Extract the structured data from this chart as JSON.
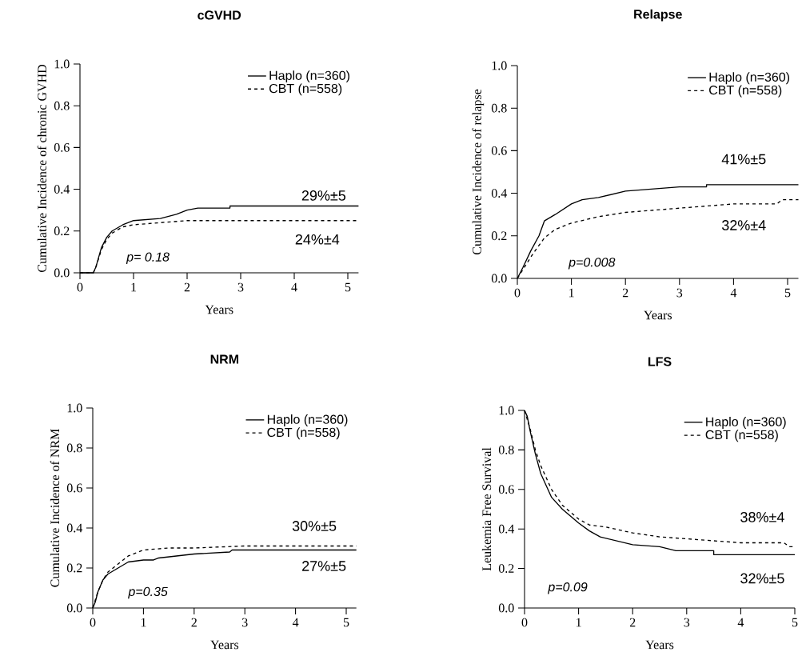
{
  "chart_data": [
    {
      "type": "line",
      "title": "cGVHD",
      "xlabel": "Years",
      "ylabel": "Cumulative Incidence of chronic GVHD",
      "xlim": [
        0,
        5.2
      ],
      "ylim": [
        0,
        1
      ],
      "xticks": [
        0,
        1,
        2,
        3,
        4,
        5
      ],
      "yticks": [
        {
          "value": 0,
          "label": "0.0"
        },
        {
          "value": 0.2,
          "label": "0.2"
        },
        {
          "value": 0.4,
          "label": "0.4"
        },
        {
          "value": 0.6,
          "label": "0.6"
        },
        {
          "value": 0.8,
          "label": "0.8"
        },
        {
          "value": 1,
          "label": "1.0"
        }
      ],
      "legend": "top right",
      "marker": "none",
      "series": [
        {
          "name": "Haplo (n=360)",
          "color": "#000000",
          "line_style": "solid",
          "x": [
            0,
            0.25,
            0.3,
            0.4,
            0.5,
            0.6,
            0.8,
            1.0,
            1.5,
            1.8,
            2.0,
            2.2,
            2.8,
            2.8,
            5.2
          ],
          "values": [
            0,
            0,
            0.03,
            0.12,
            0.17,
            0.2,
            0.23,
            0.25,
            0.26,
            0.28,
            0.3,
            0.31,
            0.31,
            0.32,
            0.32
          ]
        },
        {
          "name": "CBT (n=558)",
          "color": "#000000",
          "line_style": "dashed",
          "x": [
            0,
            0.25,
            0.3,
            0.4,
            0.5,
            0.6,
            0.8,
            1.0,
            1.5,
            2.0,
            5.2
          ],
          "values": [
            0,
            0,
            0.03,
            0.11,
            0.16,
            0.19,
            0.22,
            0.23,
            0.24,
            0.25,
            0.25
          ]
        }
      ],
      "annotations": [
        "p= 0.18",
        "29%±5",
        "24%±4"
      ]
    },
    {
      "type": "line",
      "title": "Relapse",
      "xlabel": "Years",
      "ylabel": "Cumulative Incidence of relapse",
      "xlim": [
        0,
        5.2
      ],
      "ylim": [
        0,
        1
      ],
      "xticks": [
        0,
        1,
        2,
        3,
        4,
        5
      ],
      "yticks": [
        {
          "value": 0,
          "label": "0.0"
        },
        {
          "value": 0.2,
          "label": "0.2"
        },
        {
          "value": 0.4,
          "label": "0.4"
        },
        {
          "value": 0.6,
          "label": "0.6"
        },
        {
          "value": 0.8,
          "label": "0.8"
        },
        {
          "value": 1,
          "label": "1.0"
        }
      ],
      "legend": "top right",
      "marker": "none",
      "series": [
        {
          "name": "Haplo (n=360)",
          "color": "#000000",
          "line_style": "solid",
          "x": [
            0,
            0.1,
            0.25,
            0.4,
            0.5,
            0.7,
            1.0,
            1.2,
            1.5,
            2.0,
            2.5,
            3.0,
            3.5,
            3.5,
            5.2
          ],
          "values": [
            0,
            0.05,
            0.13,
            0.2,
            0.27,
            0.3,
            0.35,
            0.37,
            0.38,
            0.41,
            0.42,
            0.43,
            0.43,
            0.44,
            0.44
          ]
        },
        {
          "name": "CBT (n=558)",
          "color": "#000000",
          "line_style": "dashed",
          "x": [
            0,
            0.1,
            0.3,
            0.5,
            0.7,
            1.0,
            1.5,
            2.0,
            3.0,
            4.0,
            4.8,
            4.9,
            5.2
          ],
          "values": [
            0,
            0.04,
            0.12,
            0.19,
            0.23,
            0.26,
            0.29,
            0.31,
            0.33,
            0.35,
            0.35,
            0.37,
            0.37
          ]
        }
      ],
      "annotations": [
        "p=0.008",
        "41%±5",
        "32%±4"
      ]
    },
    {
      "type": "line",
      "title": "NRM",
      "xlabel": "Years",
      "ylabel": "Cumulative Incidence of NRM",
      "xlim": [
        0,
        5.2
      ],
      "ylim": [
        0,
        1
      ],
      "xticks": [
        0,
        1,
        2,
        3,
        4,
        5
      ],
      "yticks": [
        {
          "value": 0,
          "label": "0.0"
        },
        {
          "value": 0.2,
          "label": "0.2"
        },
        {
          "value": 0.4,
          "label": "0.4"
        },
        {
          "value": 0.6,
          "label": "0.6"
        },
        {
          "value": 0.8,
          "label": "0.8"
        },
        {
          "value": 1,
          "label": "1.0"
        }
      ],
      "legend": "top right",
      "marker": "none",
      "series": [
        {
          "name": "Haplo (n=360)",
          "color": "#000000",
          "line_style": "solid",
          "x": [
            0,
            0.05,
            0.1,
            0.2,
            0.3,
            0.5,
            0.7,
            1.0,
            1.2,
            1.3,
            2.0,
            2.7,
            2.75,
            5.2
          ],
          "values": [
            0,
            0.03,
            0.08,
            0.14,
            0.17,
            0.2,
            0.23,
            0.24,
            0.24,
            0.25,
            0.27,
            0.28,
            0.29,
            0.29
          ]
        },
        {
          "name": "CBT (n=558)",
          "color": "#000000",
          "line_style": "dashed",
          "x": [
            0,
            0.1,
            0.2,
            0.3,
            0.5,
            0.7,
            1.0,
            1.5,
            2.0,
            3.0,
            5.2
          ],
          "values": [
            0,
            0.08,
            0.14,
            0.18,
            0.22,
            0.26,
            0.29,
            0.3,
            0.3,
            0.31,
            0.31
          ]
        }
      ],
      "annotations": [
        "p=0.35",
        "30%±5",
        "27%±5"
      ]
    },
    {
      "type": "line",
      "title": "LFS",
      "xlabel": "Years",
      "ylabel": "Leukemia Free Survival",
      "xlim": [
        0,
        5
      ],
      "ylim": [
        0,
        1
      ],
      "xticks": [
        0,
        1,
        2,
        3,
        4,
        5
      ],
      "yticks": [
        {
          "value": 0,
          "label": "0.0"
        },
        {
          "value": 0.2,
          "label": "0.2"
        },
        {
          "value": 0.4,
          "label": "0.4"
        },
        {
          "value": 0.6,
          "label": "0.6"
        },
        {
          "value": 0.8,
          "label": "0.8"
        },
        {
          "value": 1,
          "label": "1.0"
        }
      ],
      "legend": "top right",
      "marker": "none",
      "series": [
        {
          "name": "Haplo (n=360)",
          "color": "#000000",
          "line_style": "solid",
          "x": [
            0,
            0.05,
            0.1,
            0.2,
            0.3,
            0.5,
            0.7,
            1.0,
            1.2,
            1.4,
            1.7,
            2.0,
            2.5,
            2.8,
            3.5,
            3.5,
            5.0
          ],
          "values": [
            1.0,
            0.97,
            0.9,
            0.78,
            0.68,
            0.56,
            0.5,
            0.43,
            0.39,
            0.36,
            0.34,
            0.32,
            0.31,
            0.29,
            0.29,
            0.27,
            0.27
          ]
        },
        {
          "name": "CBT (n=558)",
          "color": "#000000",
          "line_style": "dashed",
          "x": [
            0,
            0.1,
            0.2,
            0.3,
            0.5,
            0.7,
            1.0,
            1.2,
            1.5,
            2.0,
            2.5,
            3.0,
            4.0,
            4.8,
            4.9,
            5.0
          ],
          "values": [
            1.0,
            0.91,
            0.8,
            0.72,
            0.6,
            0.52,
            0.45,
            0.42,
            0.41,
            0.38,
            0.36,
            0.35,
            0.33,
            0.33,
            0.31,
            0.31
          ]
        }
      ],
      "annotations": [
        "p=0.09",
        "38%±4",
        "32%±5"
      ]
    }
  ]
}
